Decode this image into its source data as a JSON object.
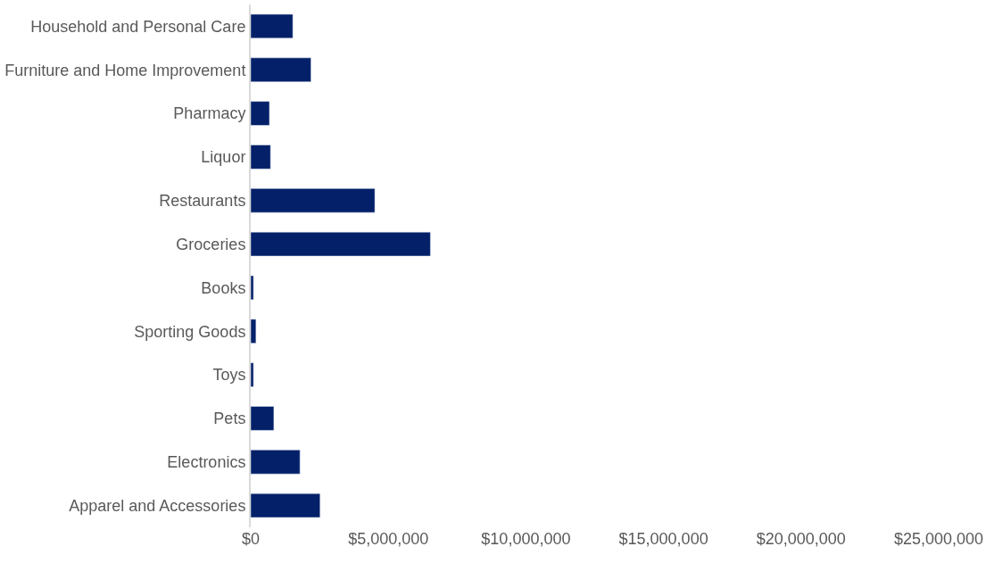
{
  "chart_data": {
    "type": "bar",
    "orientation": "horizontal",
    "categories": [
      "Household and Personal Care",
      "Furniture and Home Improvement",
      "Pharmacy",
      "Liquor",
      "Restaurants",
      "Groceries",
      "Books",
      "Sporting Goods",
      "Toys",
      "Pets",
      "Electronics",
      "Apparel and Accessories"
    ],
    "values": [
      1530000,
      2190000,
      680000,
      720000,
      4510000,
      6530000,
      100000,
      190000,
      100000,
      840000,
      1790000,
      2520000
    ],
    "color": "#042069",
    "xlim": [
      0,
      25000000
    ],
    "xticks": [
      {
        "value": 0,
        "label": "$0"
      },
      {
        "value": 5000000,
        "label": "$5,000,000"
      },
      {
        "value": 10000000,
        "label": "$10,000,000"
      },
      {
        "value": 15000000,
        "label": "$15,000,000"
      },
      {
        "value": 20000000,
        "label": "$20,000,000"
      },
      {
        "value": 25000000,
        "label": "$25,000,000"
      }
    ],
    "legend": false
  }
}
